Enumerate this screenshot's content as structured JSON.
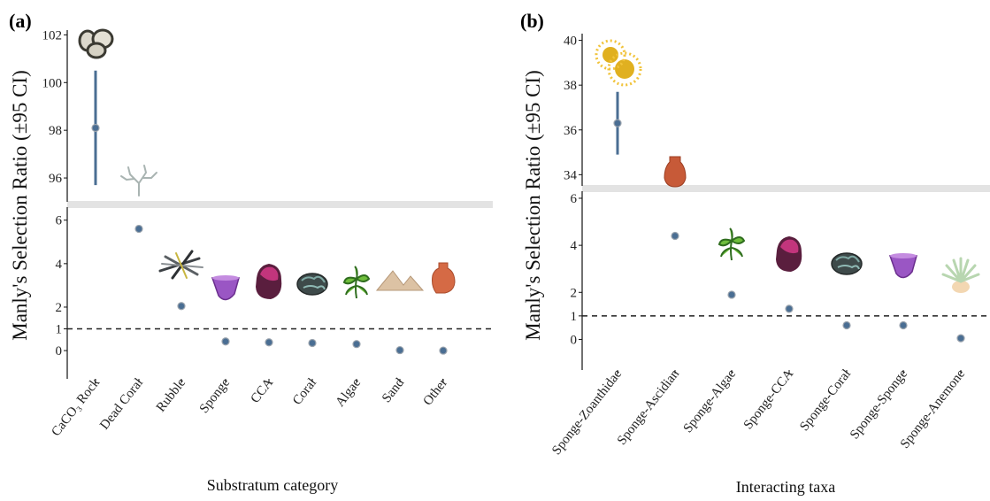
{
  "chart_data": [
    {
      "panel_label": "(a)",
      "type": "scatter",
      "subtype": "point-with-error-bars, broken y-axis",
      "xlabel": "Substratum category",
      "ylabel": "Manly's Selection Ratio (±95 CI)",
      "categories": [
        "CaCO₃ Rock",
        "Dead Coral",
        "Rubble",
        "Sponge",
        "CCA",
        "Coral",
        "Algae",
        "Sand",
        "Other"
      ],
      "values": [
        98.1,
        5.6,
        2.05,
        0.42,
        0.38,
        0.35,
        0.3,
        0.02,
        0.0
      ],
      "error_bars": [
        [
          95.7,
          100.5
        ],
        null,
        null,
        null,
        null,
        null,
        null,
        null,
        null
      ],
      "icons": [
        "rock-icon",
        "dead-coral-icon",
        "rubble-icon",
        "sponge-icon",
        "cca-icon",
        "coral-icon",
        "algae-icon",
        "sand-icon",
        "other-icon"
      ],
      "upper_segment": {
        "ylim": [
          95,
          102.2
        ],
        "ticks": [
          "96",
          "98",
          "100",
          "102"
        ]
      },
      "lower_segment": {
        "ylim": [
          -1.3,
          6.6
        ],
        "ticks": [
          "0",
          "1",
          "2",
          "4",
          "6"
        ]
      },
      "reference_line": 1,
      "point_color": "#4a6e93",
      "errorbar_color": "#4a6e93",
      "break_band_color": "#e3e3e3"
    },
    {
      "panel_label": "(b)",
      "type": "scatter",
      "subtype": "point-with-error-bars, broken y-axis",
      "xlabel": "Interacting taxa",
      "ylabel": "Manly's Selection Ratio (±95 CI)",
      "categories": [
        "Sponge-Zoanthidae",
        "Sponge-Ascidian",
        "Sponge-Algae",
        "Sponge-CCA",
        "Sponge-Coral",
        "Sponge-Sponge",
        "Sponge-Anemone"
      ],
      "values": [
        36.3,
        4.4,
        1.9,
        1.3,
        0.6,
        0.6,
        0.05
      ],
      "error_bars": [
        [
          34.9,
          37.7
        ],
        null,
        null,
        null,
        null,
        null,
        null
      ],
      "icons": [
        "zoanthid-icon",
        "ascidian-icon",
        "algae-icon",
        "cca-icon",
        "coral-icon",
        "sponge-icon",
        "anemone-icon"
      ],
      "upper_segment": {
        "ylim": [
          33.5,
          40.3
        ],
        "ticks": [
          "34",
          "36",
          "38",
          "40"
        ]
      },
      "lower_segment": {
        "ylim": [
          -1.3,
          6.3
        ],
        "ticks": [
          "0",
          "1",
          "2",
          "4",
          "6"
        ]
      },
      "reference_line": 1,
      "point_color": "#4a6e93",
      "errorbar_color": "#4a6e93",
      "break_band_color": "#e3e3e3"
    }
  ]
}
